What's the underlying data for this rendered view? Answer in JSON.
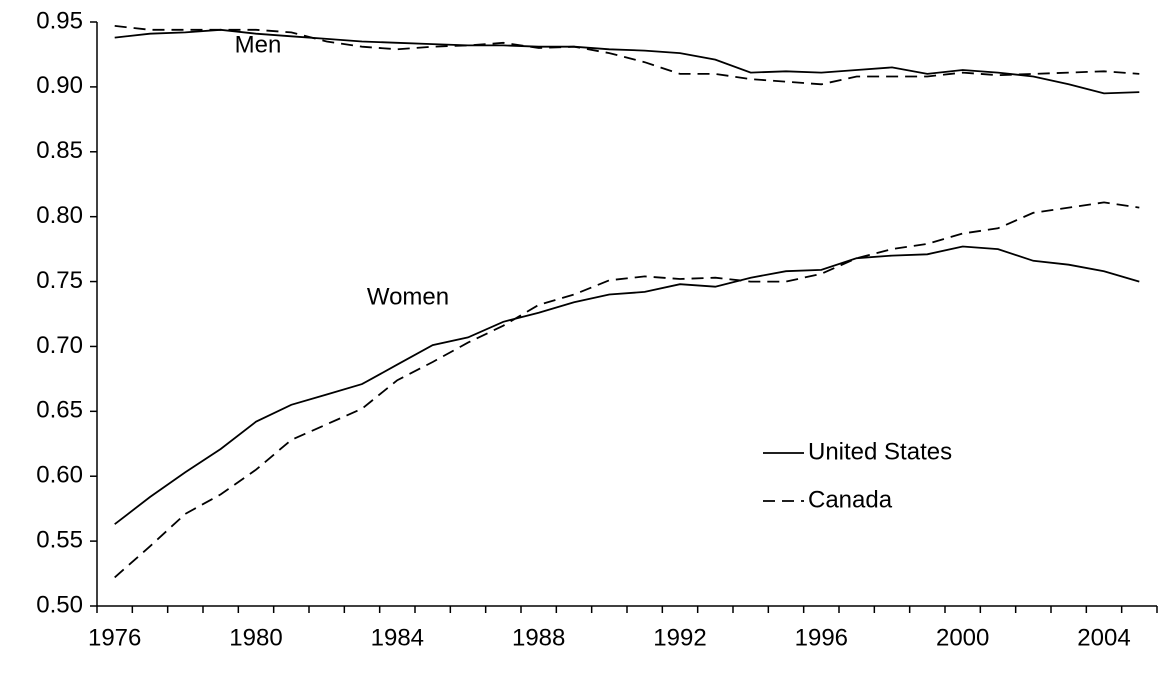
{
  "chart_data": {
    "type": "line",
    "categories": [
      "1976",
      null,
      null,
      null,
      "1980",
      null,
      null,
      null,
      "1984",
      null,
      null,
      null,
      "1988",
      null,
      null,
      null,
      "1992",
      null,
      null,
      null,
      "1996",
      null,
      null,
      null,
      "2000",
      null,
      null,
      null,
      "2004",
      null
    ],
    "annotations": [
      "Men",
      "Women"
    ],
    "series": [
      {
        "name": "United States",
        "color": "#000000",
        "dashed": false,
        "values": [
          [
            0.938,
            0.941,
            0.942,
            0.944,
            0.941,
            0.939,
            0.937,
            0.935,
            0.934,
            0.933,
            0.932,
            0.932,
            0.931,
            0.931,
            0.929,
            0.928,
            0.926,
            0.921,
            0.911,
            0.912,
            0.911,
            0.913,
            0.915,
            0.91,
            0.913,
            0.911,
            0.908,
            0.902,
            0.895,
            0.896
          ],
          [
            0.563,
            0.584,
            0.603,
            0.621,
            0.642,
            0.655,
            0.663,
            0.671,
            0.686,
            0.701,
            0.707,
            0.719,
            0.726,
            0.734,
            0.74,
            0.742,
            0.748,
            0.746,
            0.753,
            0.758,
            0.759,
            0.768,
            0.77,
            0.771,
            0.777,
            0.775,
            0.766,
            0.763,
            0.758,
            0.75
          ]
        ]
      },
      {
        "name": "Canada",
        "color": "#000000",
        "dashed": true,
        "values": [
          [
            0.947,
            0.944,
            0.944,
            0.944,
            0.944,
            0.942,
            0.935,
            0.931,
            0.929,
            0.931,
            0.932,
            0.934,
            0.93,
            0.931,
            0.926,
            0.919,
            0.91,
            0.91,
            0.906,
            0.904,
            0.902,
            0.908,
            0.908,
            0.908,
            0.911,
            0.909,
            0.91,
            0.911,
            0.912,
            0.91
          ],
          [
            0.522,
            0.546,
            0.571,
            0.586,
            0.605,
            0.628,
            0.64,
            0.652,
            0.674,
            0.688,
            0.703,
            0.716,
            0.732,
            0.74,
            0.751,
            0.754,
            0.752,
            0.753,
            0.75,
            0.75,
            0.756,
            0.768,
            0.775,
            0.779,
            0.787,
            0.791,
            0.803,
            0.807,
            0.811,
            0.807
          ]
        ]
      }
    ],
    "ylim": [
      0.5,
      0.95
    ],
    "yticks": [
      {
        "value": 0.5,
        "label": "0.50"
      },
      {
        "value": 0.55,
        "label": "0.55"
      },
      {
        "value": 0.6,
        "label": "0.60"
      },
      {
        "value": 0.65,
        "label": "0.65"
      },
      {
        "value": 0.7,
        "label": "0.70"
      },
      {
        "value": 0.75,
        "label": "0.75"
      },
      {
        "value": 0.8,
        "label": "0.80"
      },
      {
        "value": 0.85,
        "label": "0.85"
      },
      {
        "value": 0.9,
        "label": "0.90"
      },
      {
        "value": 0.95,
        "label": "0.95"
      }
    ],
    "grid": false
  }
}
